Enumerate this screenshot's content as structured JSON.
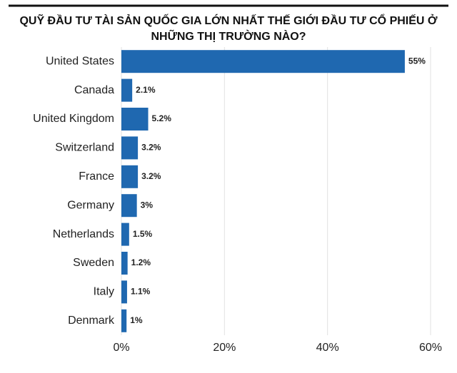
{
  "chart_data": {
    "type": "bar",
    "orientation": "horizontal",
    "title_lines": [
      "QUỸ ĐẦU TƯ TÀI SẢN QUỐC GIA LỚN NHẤT THẾ GIỚI ĐẦU TƯ CỔ PHIẾU Ở",
      "NHỮNG THỊ TRƯỜNG NÀO?"
    ],
    "categories": [
      "United States",
      "Canada",
      "United Kingdom",
      "Switzerland",
      "France",
      "Germany",
      "Netherlands",
      "Sweden",
      "Italy",
      "Denmark"
    ],
    "values": [
      55,
      2.1,
      5.2,
      3.2,
      3.2,
      3,
      1.5,
      1.2,
      1.1,
      1
    ],
    "value_labels": [
      "55%",
      "2.1%",
      "5.2%",
      "3.2%",
      "3.2%",
      "3%",
      "1.5%",
      "1.2%",
      "1.1%",
      "1%"
    ],
    "color": "#1f68b0",
    "xlim": [
      0,
      60
    ],
    "xticks": [
      {
        "value": 0,
        "label": "0%"
      },
      {
        "value": 20,
        "label": "20%"
      },
      {
        "value": 40,
        "label": "40%"
      },
      {
        "value": 60,
        "label": "60%"
      }
    ],
    "grid": true
  }
}
